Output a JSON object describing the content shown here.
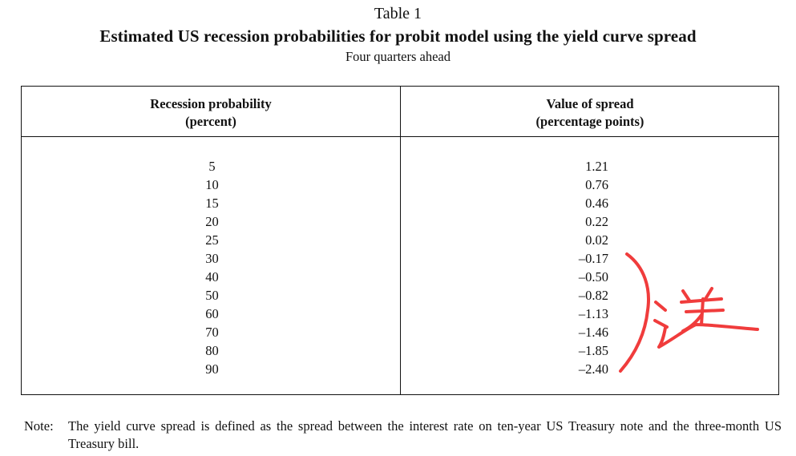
{
  "table": {
    "label": "Table 1",
    "title": "Estimated US recession probabilities for probit model using the yield curve spread",
    "subtitle": "Four quarters ahead",
    "columns": {
      "probability": [
        "Recession probability",
        "(percent)"
      ],
      "spread": [
        "Value of spread",
        "(percentage points)"
      ]
    },
    "rows": [
      {
        "probability": "5",
        "spread": "1.21"
      },
      {
        "probability": "10",
        "spread": "0.76"
      },
      {
        "probability": "15",
        "spread": "0.46"
      },
      {
        "probability": "20",
        "spread": "0.22"
      },
      {
        "probability": "25",
        "spread": "0.02"
      },
      {
        "probability": "30",
        "spread": "–0.17"
      },
      {
        "probability": "40",
        "spread": "–0.50"
      },
      {
        "probability": "50",
        "spread": "–0.82"
      },
      {
        "probability": "60",
        "spread": "–1.13"
      },
      {
        "probability": "70",
        "spread": "–1.46"
      },
      {
        "probability": "80",
        "spread": "–1.85"
      },
      {
        "probability": "90",
        "spread": "–2.40"
      }
    ],
    "note": {
      "label": "Note:",
      "text": "The yield curve spread is defined as the spread between the interest rate on ten-year US Treasury note and the three-month US Treasury bill."
    }
  },
  "annotation": {
    "handwritten_text": "逆",
    "color": "#f03c3c"
  }
}
